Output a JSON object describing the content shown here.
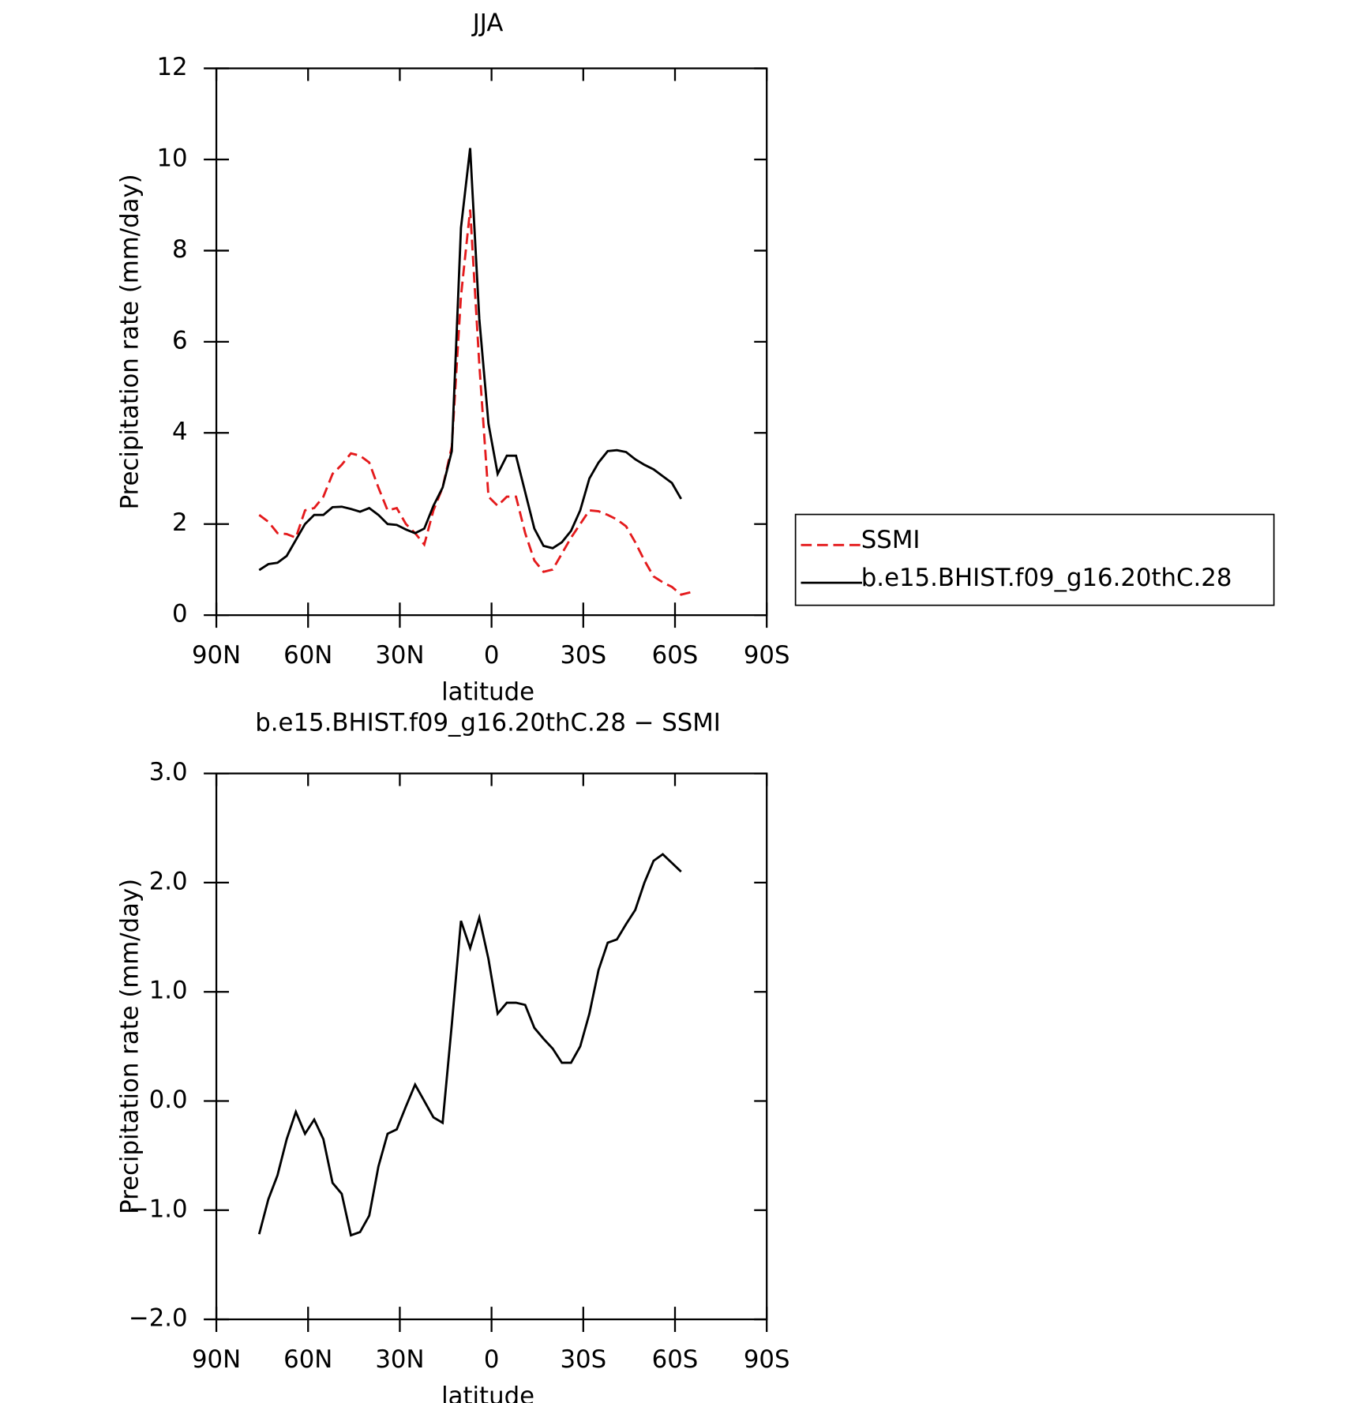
{
  "chart_data": [
    {
      "type": "line",
      "title": "JJA",
      "xlabel": "latitude",
      "ylabel": "Precipitation rate (mm/day)",
      "x": [
        76,
        73,
        70,
        67,
        64,
        61,
        58,
        55,
        52,
        49,
        46,
        43,
        40,
        37,
        34,
        31,
        28,
        25,
        22,
        19,
        16,
        13,
        10,
        7,
        4,
        1,
        -2,
        -5,
        -8,
        -11,
        -14,
        -17,
        -20,
        -23,
        -26,
        -29,
        -32,
        -35,
        -38,
        -41,
        -44,
        -47,
        -50,
        -53,
        -56,
        -59,
        -62,
        -65
      ],
      "series": [
        {
          "name": "SSMI",
          "color": "#e41a1c",
          "dash": true,
          "values": [
            2.2,
            2.05,
            1.8,
            1.78,
            1.7,
            2.3,
            2.35,
            2.6,
            3.1,
            3.3,
            3.55,
            3.5,
            3.35,
            2.8,
            2.3,
            2.35,
            2.0,
            1.8,
            1.55,
            2.3,
            2.8,
            3.7,
            7.0,
            8.9,
            5.5,
            2.6,
            2.4,
            2.6,
            2.6,
            1.8,
            1.2,
            0.95,
            1.0,
            1.35,
            1.7,
            2.0,
            2.3,
            2.28,
            2.2,
            2.1,
            1.95,
            1.6,
            1.2,
            0.85,
            0.72,
            0.62,
            0.45,
            0.5
          ]
        },
        {
          "name": "b.e15.BHIST.f09_g16.20thC.28",
          "color": "#000000",
          "dash": false,
          "values": [
            0.99,
            1.12,
            1.15,
            1.3,
            1.65,
            2.0,
            2.2,
            2.2,
            2.37,
            2.38,
            2.33,
            2.27,
            2.35,
            2.2,
            2.0,
            1.98,
            1.88,
            1.8,
            1.9,
            2.4,
            2.8,
            3.6,
            8.5,
            10.25,
            6.5,
            4.2,
            3.1,
            3.5,
            3.5,
            2.7,
            1.9,
            1.52,
            1.47,
            1.6,
            1.85,
            2.3,
            3.0,
            3.35,
            3.6,
            3.62,
            3.58,
            3.42,
            3.3,
            3.2,
            3.05,
            2.9,
            2.55,
            null
          ]
        }
      ],
      "xlim": [
        90,
        -90
      ],
      "xticks": [
        {
          "value": 90,
          "label": "90N"
        },
        {
          "value": 60,
          "label": "60N"
        },
        {
          "value": 30,
          "label": "30N"
        },
        0,
        {
          "value": -30,
          "label": "30S"
        },
        {
          "value": -60,
          "label": "60S"
        },
        {
          "value": -90,
          "label": "90S"
        }
      ],
      "ylim": [
        0,
        12
      ],
      "yticks": [
        0,
        2,
        4,
        6,
        8,
        10,
        12
      ],
      "legend": "right"
    },
    {
      "type": "line",
      "title": "b.e15.BHIST.f09_g16.20thC.28 − SSMI",
      "xlabel": "latitude",
      "ylabel": "Precipitation rate (mm/day)",
      "x": [
        76,
        73,
        70,
        67,
        64,
        61,
        58,
        55,
        52,
        49,
        46,
        43,
        40,
        37,
        34,
        31,
        28,
        25,
        22,
        19,
        16,
        13,
        10,
        7,
        4,
        1,
        -2,
        -5,
        -8,
        -11,
        -14,
        -17,
        -20,
        -23,
        -26,
        -29,
        -32,
        -35,
        -38,
        -41,
        -44,
        -47,
        -50,
        -53,
        -56,
        -59,
        -62
      ],
      "series": [
        {
          "color": "#000000",
          "dash": false,
          "values": [
            -1.22,
            -0.9,
            -0.68,
            -0.35,
            -0.1,
            -0.3,
            -0.17,
            -0.35,
            -0.75,
            -0.85,
            -1.23,
            -1.2,
            -1.05,
            -0.6,
            -0.3,
            -0.26,
            -0.05,
            0.15,
            0.0,
            -0.15,
            -0.2,
            0.7,
            1.65,
            1.4,
            1.68,
            1.3,
            0.8,
            0.9,
            0.9,
            0.88,
            0.67,
            0.57,
            0.48,
            0.35,
            0.35,
            0.5,
            0.8,
            1.2,
            1.45,
            1.48,
            1.62,
            1.75,
            2.0,
            2.2,
            2.26,
            2.18,
            2.1
          ]
        }
      ],
      "xlim": [
        90,
        -90
      ],
      "xticks": [
        {
          "value": 90,
          "label": "90N"
        },
        {
          "value": 60,
          "label": "60N"
        },
        {
          "value": 30,
          "label": "30N"
        },
        0,
        {
          "value": -30,
          "label": "30S"
        },
        {
          "value": -60,
          "label": "60S"
        },
        {
          "value": -90,
          "label": "90S"
        }
      ],
      "ylim": [
        -2,
        3
      ],
      "yticks": [
        {
          "value": -2,
          "label": "−2.0"
        },
        {
          "value": -1,
          "label": "−1.0"
        },
        {
          "value": 0,
          "label": "0.0"
        },
        {
          "value": 1,
          "label": "1.0"
        },
        {
          "value": 2,
          "label": "2.0"
        },
        {
          "value": 3,
          "label": "3.0"
        }
      ]
    }
  ]
}
